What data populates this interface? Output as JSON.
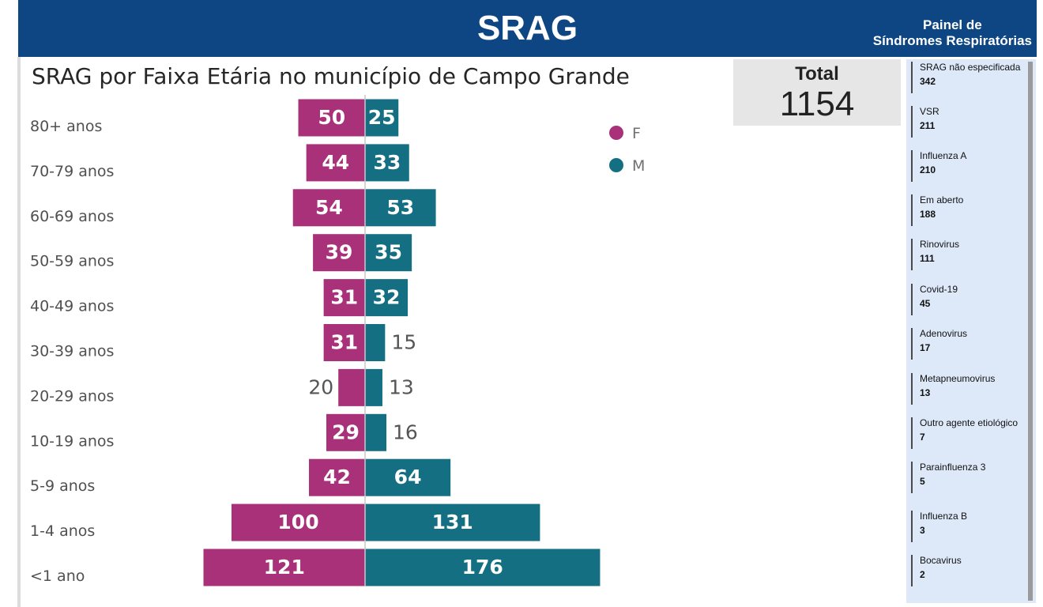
{
  "header": {
    "title": "SRAG",
    "subtitle_line1": "Painel de",
    "subtitle_line2": "Síndromes Respiratórias"
  },
  "total": {
    "label": "Total",
    "value": "1154"
  },
  "side_items": [
    {
      "name": "SRAG não especificada",
      "count": "342"
    },
    {
      "name": "VSR",
      "count": "211"
    },
    {
      "name": "Influenza A",
      "count": "210"
    },
    {
      "name": "Em aberto",
      "count": "188"
    },
    {
      "name": "Rinovirus",
      "count": "111"
    },
    {
      "name": "Covid-19",
      "count": "45"
    },
    {
      "name": "Adenovirus",
      "count": "17"
    },
    {
      "name": "Metapneumovirus",
      "count": "13"
    },
    {
      "name": "Outro agente etiológico",
      "count": "7"
    },
    {
      "name": "Parainfluenza 3",
      "count": "5"
    },
    {
      "name": "Influenza B",
      "count": "3"
    },
    {
      "name": "Bocavirus",
      "count": "2"
    }
  ],
  "chart_data": {
    "type": "bar",
    "orientation": "horizontal-diverging",
    "title": "SRAG por Faixa Etária no município de Campo Grande",
    "categories": [
      "80+ anos",
      "70-79 anos",
      "60-69 anos",
      "50-59 anos",
      "40-49 anos",
      "30-39 anos",
      "20-29 anos",
      "10-19 anos",
      "5-9 anos",
      "1-4 anos",
      "<1 ano"
    ],
    "series": [
      {
        "name": "F",
        "color": "#a8317a",
        "values": [
          50,
          44,
          54,
          39,
          31,
          31,
          20,
          29,
          42,
          100,
          121
        ]
      },
      {
        "name": "M",
        "color": "#146f83",
        "values": [
          25,
          33,
          53,
          35,
          32,
          15,
          13,
          16,
          64,
          131,
          176
        ]
      }
    ],
    "legend": "top-right"
  }
}
